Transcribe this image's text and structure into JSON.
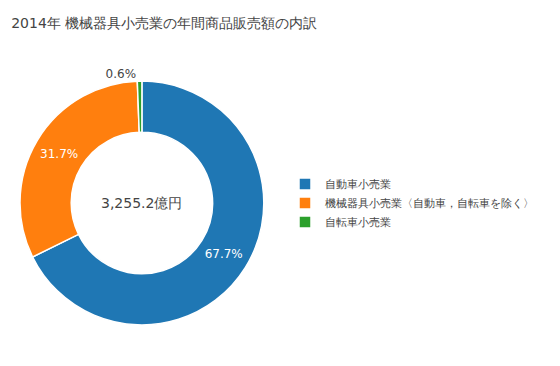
{
  "chart_data": {
    "type": "donut",
    "title": "2014年 機械器具小売業の年間商品販売額の内訳",
    "categories": [
      "自動車小売業",
      "機械器具小売業〈自動車，自転車を除く〉",
      "自転車小売業"
    ],
    "values": [
      67.7,
      31.7,
      0.6
    ],
    "value_labels": [
      "67.7%",
      "31.7%",
      "0.6%"
    ],
    "data_labels": true,
    "legend": "right",
    "annotations": [
      {
        "text": "3,255.2億円"
      }
    ]
  }
}
